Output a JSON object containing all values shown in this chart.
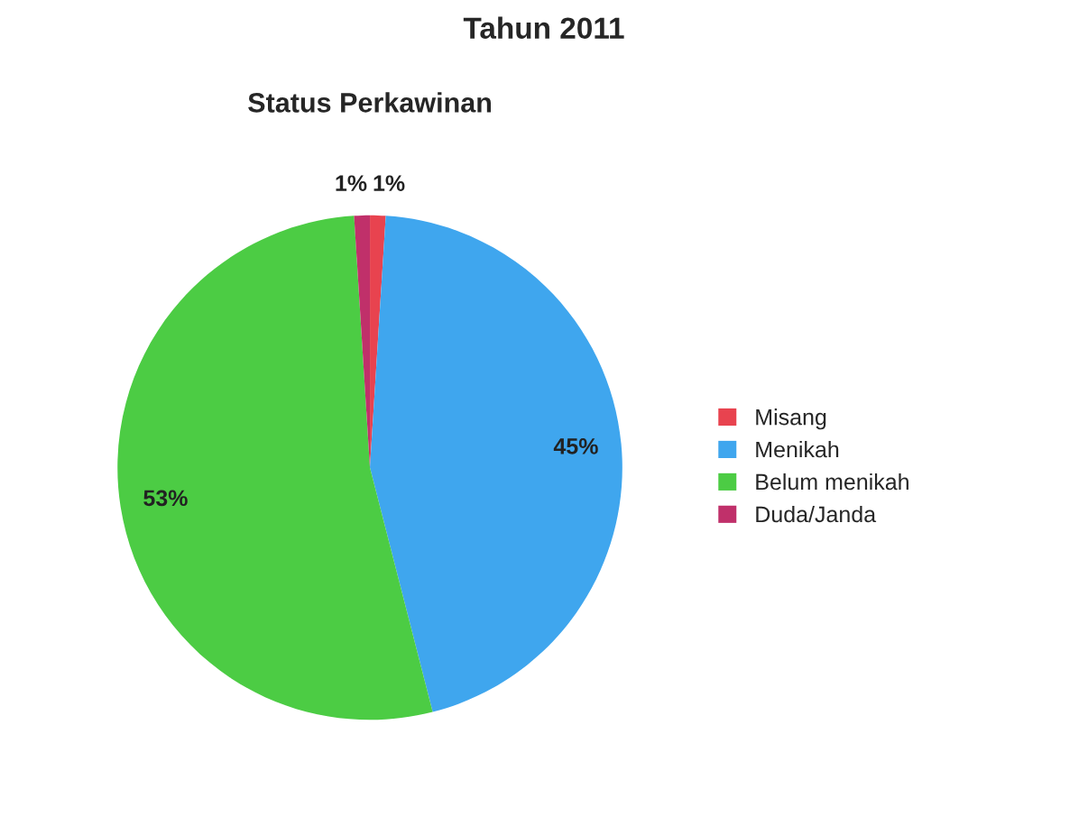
{
  "chart_data": {
    "type": "pie",
    "title": "Tahun 2011",
    "subtitle": "Status Perkawinan",
    "categories": [
      "Misang",
      "Menikah",
      "Belum menikah",
      "Duda/Janda"
    ],
    "values": [
      1,
      45,
      53,
      1
    ],
    "colors": [
      "#e8434f",
      "#3fa6ee",
      "#4ccc44",
      "#c0306a"
    ],
    "value_labels": [
      "1%",
      "45%",
      "53%",
      "1%"
    ],
    "legend": "right"
  }
}
